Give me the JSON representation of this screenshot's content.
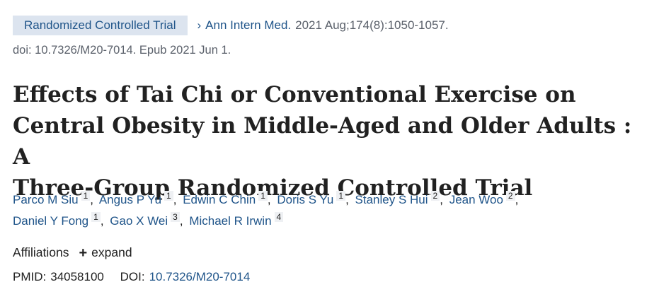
{
  "article_type_badge": "Randomized Controlled Trial",
  "journal": {
    "name": "Ann Intern Med.",
    "citation": "2021 Aug;174(8):1050-1057."
  },
  "doi_line": "doi: 10.7326/M20-7014. Epub 2021 Jun 1.",
  "title_lines": [
    "Effects of Tai Chi or Conventional Exercise on",
    "Central Obesity in Middle-Aged and Older Adults : A",
    "Three-Group Randomized Controlled Trial"
  ],
  "authors": [
    {
      "name": "Parco M Siu",
      "aff": "1"
    },
    {
      "name": "Angus P Yu",
      "aff": "1"
    },
    {
      "name": "Edwin C Chin",
      "aff": "1"
    },
    {
      "name": "Doris S Yu",
      "aff": "1"
    },
    {
      "name": "Stanley S Hui",
      "aff": "2"
    },
    {
      "name": "Jean Woo",
      "aff": "2"
    },
    {
      "name": "Daniel Y Fong",
      "aff": "1"
    },
    {
      "name": "Gao X Wei",
      "aff": "3"
    },
    {
      "name": "Michael R Irwin",
      "aff": "4"
    }
  ],
  "affiliations": {
    "label": "Affiliations",
    "expand_label": "expand",
    "expand_icon": "plus-icon"
  },
  "ids": {
    "pmid_label": "PMID:",
    "pmid_value": "34058100",
    "doi_label": "DOI:",
    "doi_value": "10.7326/M20-7014"
  },
  "colors": {
    "link": "#20558a",
    "badge_bg": "#dce4ef",
    "muted_text": "#5b616b",
    "text": "#212121"
  }
}
